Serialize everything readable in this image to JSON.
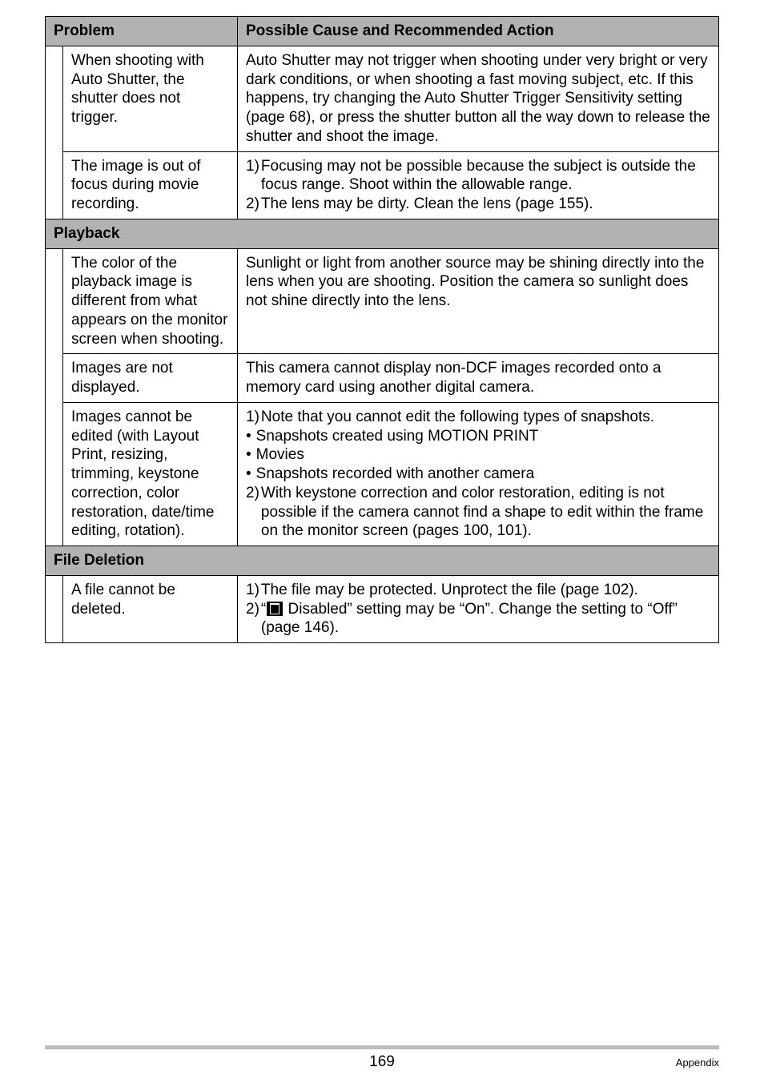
{
  "header": {
    "problem_label": "Problem",
    "action_label": "Possible Cause and Recommended Action"
  },
  "rows_top": [
    {
      "problem": "When shooting with Auto Shutter, the shutter does not trigger.",
      "action_plain": "Auto Shutter may not trigger when shooting under very bright or very dark conditions, or when shooting a fast moving subject, etc. If this happens, try changing the Auto Shutter Trigger Sensitivity setting (page 68), or press the shutter button all the way down to release the shutter and shoot the image."
    },
    {
      "problem": "The image is out of focus during movie recording.",
      "action_numbered": [
        "Focusing may not be possible because the subject is outside the focus range. Shoot within the allowable range.",
        "The lens may be dirty. Clean the lens (page 155)."
      ]
    }
  ],
  "section_playback": "Playback",
  "rows_playback": [
    {
      "problem": "The color of the playback image is different from what appears on the monitor screen when shooting.",
      "action_plain": "Sunlight or light from another source may be shining directly into the lens when you are shooting. Position the camera so sunlight does not shine directly into the lens."
    },
    {
      "problem": "Images are not displayed.",
      "action_plain": "This camera cannot display non-DCF images recorded onto a memory card using another digital camera."
    },
    {
      "problem": "Images cannot be edited (with Layout Print, resizing, trimming, keystone correction, color restoration, date/time editing, rotation).",
      "action_numbered": [
        "Note that you cannot edit the following types of snapshots.",
        "With keystone correction and color restoration, editing is not possible if the camera cannot find a shape to edit within the frame on the monitor screen (pages 100, 101)."
      ],
      "bullets_after_first": [
        "Snapshots created using MOTION PRINT",
        "Movies",
        "Snapshots recorded with another camera"
      ]
    }
  ],
  "section_file_deletion": "File Deletion",
  "rows_file_deletion": [
    {
      "problem": "A file cannot be deleted.",
      "action_numbered_prefix": "The file may be protected. Unprotect the file (page 102).",
      "action_numbered_icon_before": "“",
      "action_numbered_icon_after": " Disabled” setting may be “On”. Change the setting to “Off” (page 146)."
    }
  ],
  "footer": {
    "page_number": "169",
    "section_label": "Appendix"
  },
  "colors": {
    "header_bg": "#b2b2b2",
    "border": "#000000",
    "footer_rule": "#bdbdbd"
  }
}
